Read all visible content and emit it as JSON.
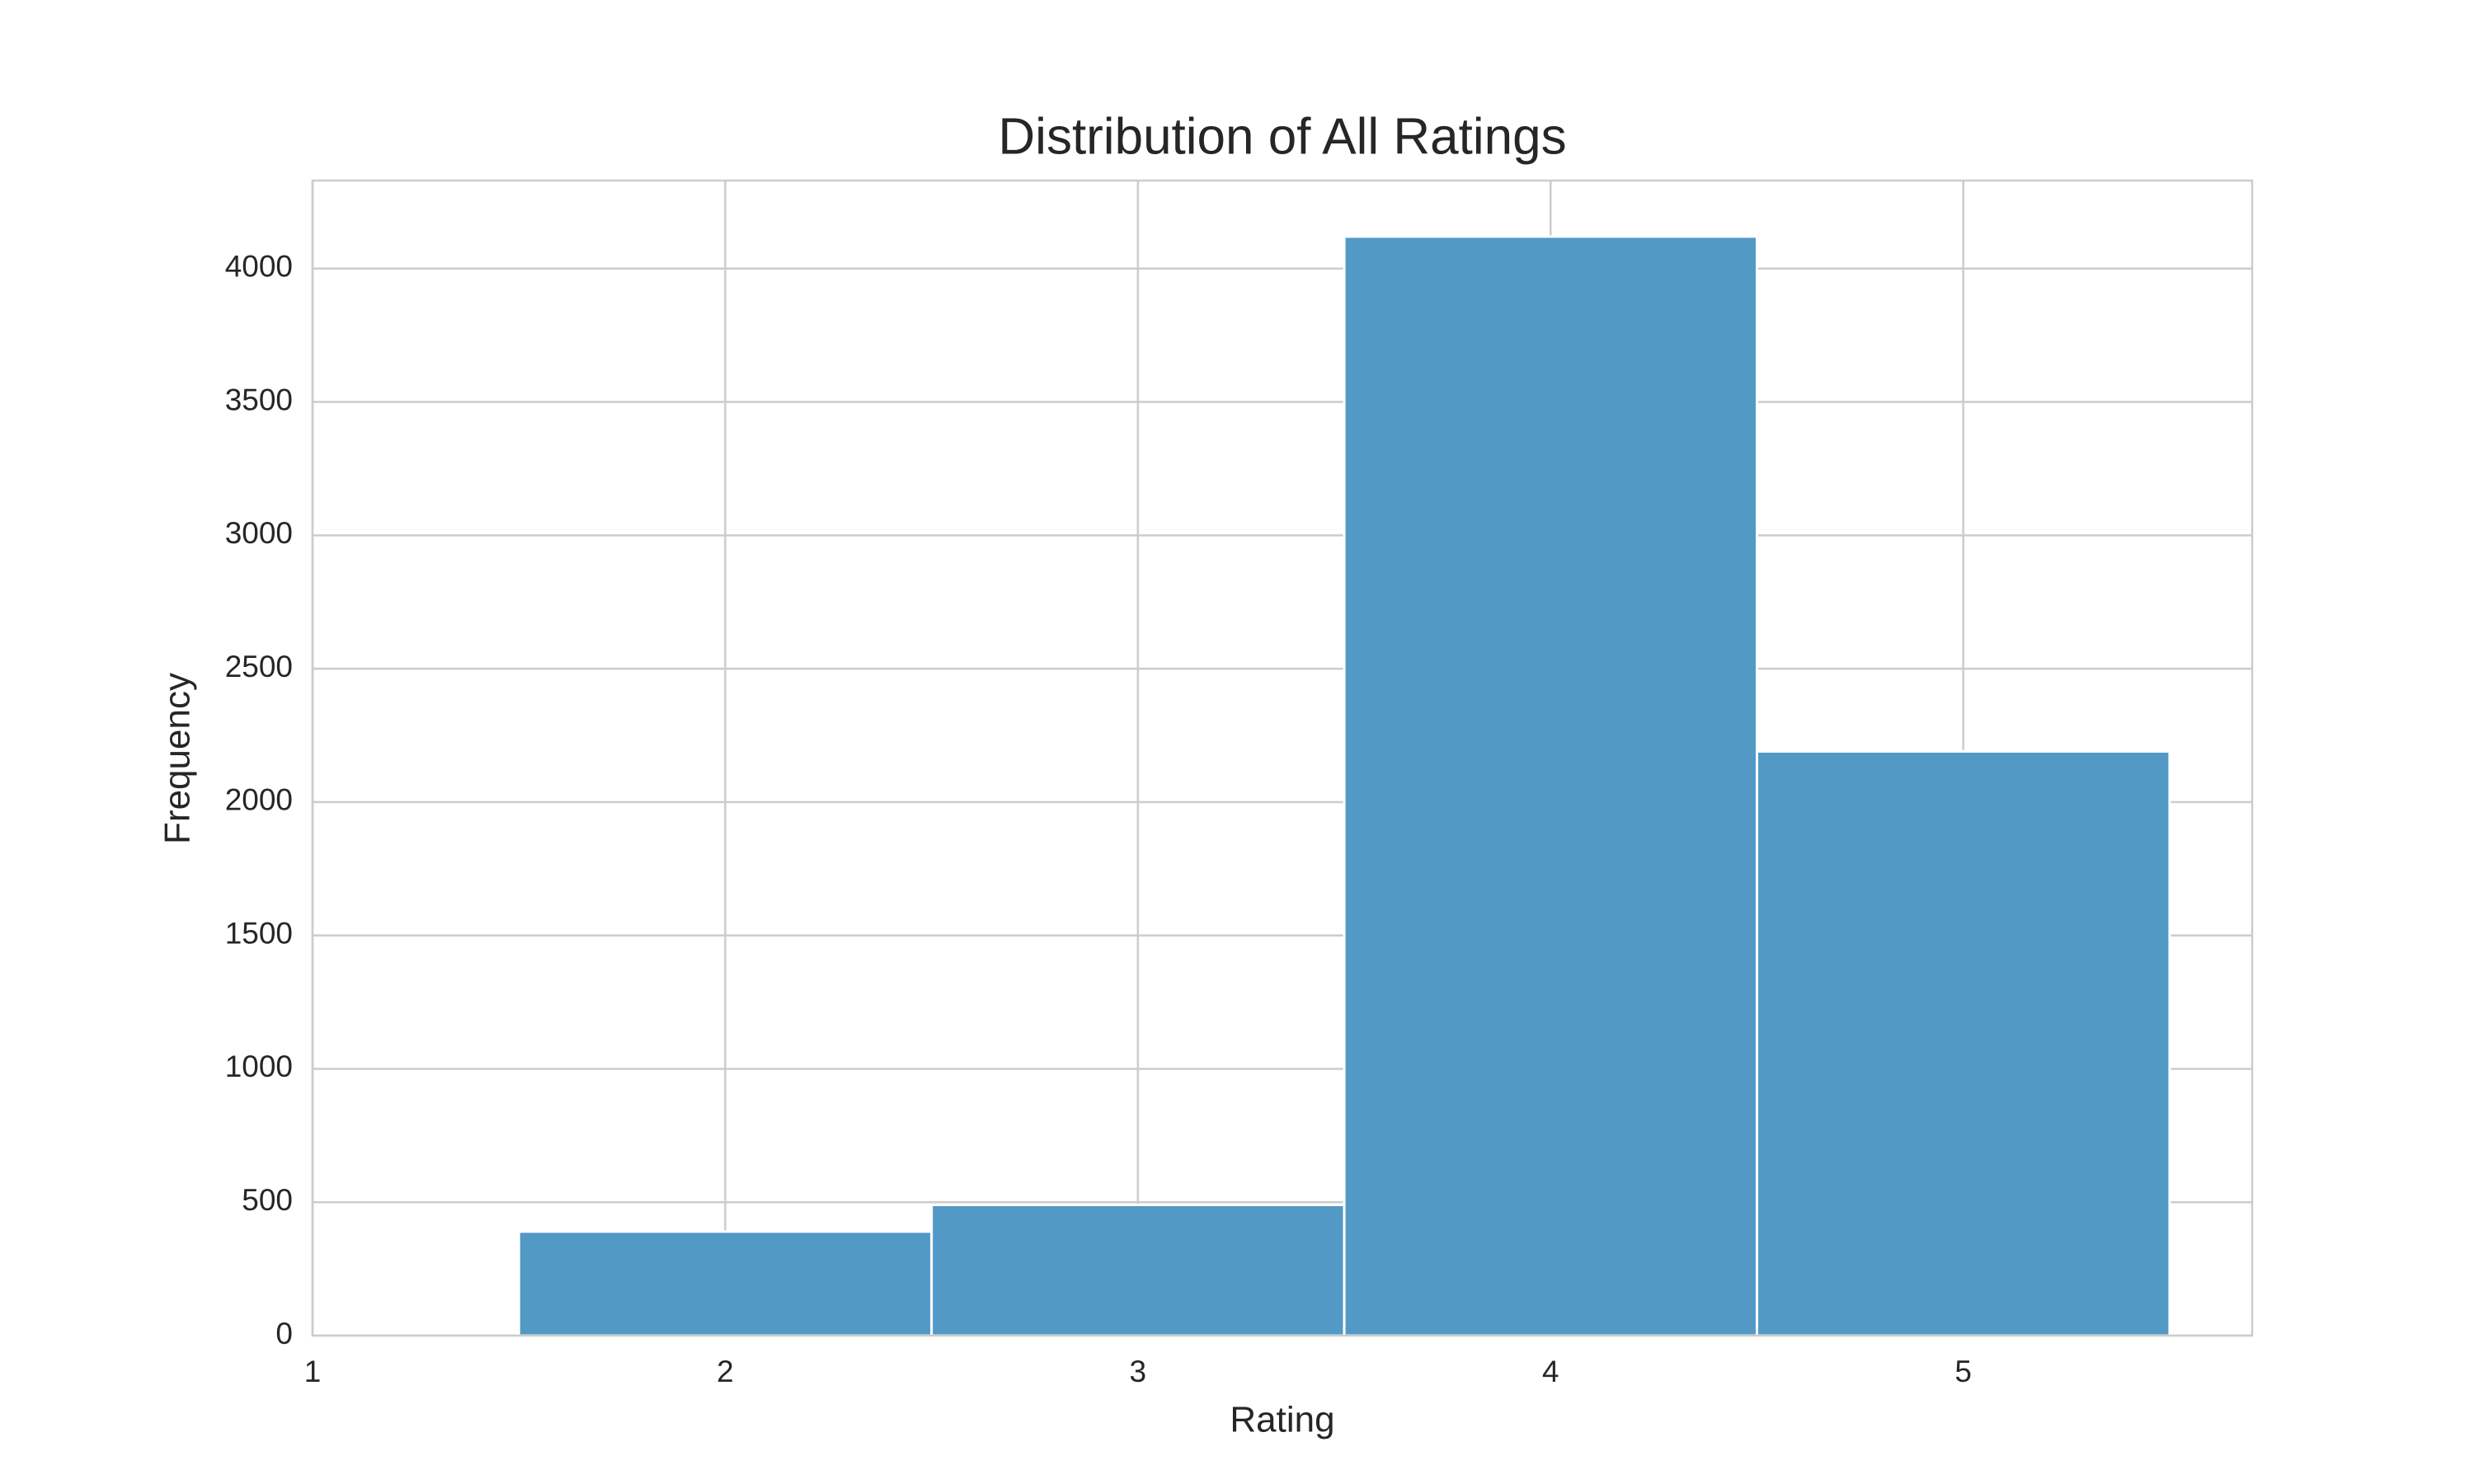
{
  "chart_data": {
    "type": "histogram",
    "title": "Distribution of All Ratings",
    "x_label": "Rating",
    "y_label": "Frequency",
    "bins": [
      1.5,
      2.5,
      3.5,
      4.5,
      5.5
    ],
    "values": [
      390,
      490,
      4120,
      2190
    ],
    "color": "#5399c6",
    "xlim": [
      1,
      5.7
    ],
    "xticks": [
      1,
      2,
      3,
      4,
      5
    ],
    "ylim": [
      0,
      4330
    ],
    "yticks": [
      0,
      500,
      1000,
      1500,
      2000,
      2500,
      3000,
      3500,
      4000
    ],
    "grid": true
  }
}
